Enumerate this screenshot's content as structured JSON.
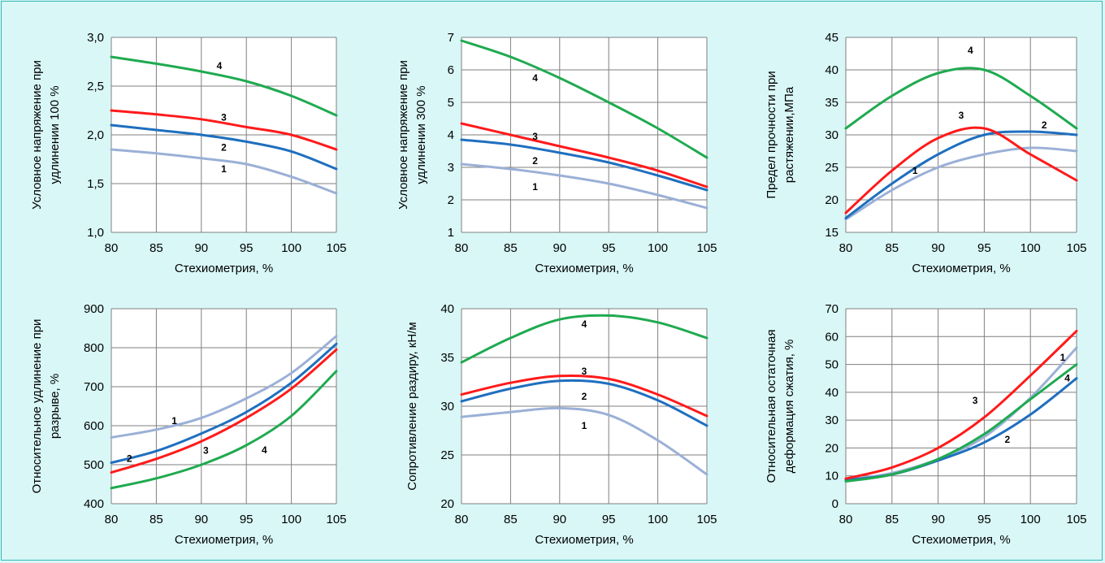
{
  "colors": {
    "background": "#d9f7f7",
    "frame": "#37b6b6",
    "plot_bg": "#ffffff",
    "grid": "#7f7f7f",
    "curve_1": "#9bb0d6",
    "curve_2": "#1f6fbf",
    "curve_3": "#ff1a1a",
    "curve_4": "#1faa50"
  },
  "chart_data": [
    {
      "type": "line",
      "xlabel": "Стехиометрия, %",
      "ylabel_lines": [
        "Условное напряжение при",
        "удлинении 100 %"
      ],
      "xlim": [
        80,
        105
      ],
      "ylim": [
        1.0,
        3.0
      ],
      "x_ticks": [
        80,
        85,
        90,
        95,
        100,
        105
      ],
      "y_ticks": [
        1.0,
        1.5,
        2.0,
        2.5,
        3.0
      ],
      "y_tick_labels": [
        "1,0",
        "1,5",
        "2,0",
        "2,5",
        "3,0"
      ],
      "x": [
        80,
        85,
        90,
        95,
        100,
        105
      ],
      "series": [
        {
          "label": "1",
          "label_at": [
            92.5,
            1.65
          ],
          "values": [
            1.85,
            1.81,
            1.76,
            1.7,
            1.57,
            1.4
          ]
        },
        {
          "label": "2",
          "label_at": [
            92.5,
            1.87
          ],
          "values": [
            2.1,
            2.05,
            2.0,
            1.93,
            1.83,
            1.65
          ]
        },
        {
          "label": "3",
          "label_at": [
            92.5,
            2.18
          ],
          "values": [
            2.25,
            2.21,
            2.16,
            2.08,
            2.0,
            1.85
          ]
        },
        {
          "label": "4",
          "label_at": [
            92.0,
            2.71
          ],
          "values": [
            2.8,
            2.73,
            2.65,
            2.55,
            2.4,
            2.2
          ]
        }
      ]
    },
    {
      "type": "line",
      "xlabel": "Стехиометрия, %",
      "ylabel_lines": [
        "Условное напряжение при",
        "удлинении 300 %"
      ],
      "xlim": [
        80,
        105
      ],
      "ylim": [
        1,
        7
      ],
      "x_ticks": [
        80,
        85,
        90,
        95,
        100,
        105
      ],
      "y_ticks": [
        1,
        2,
        3,
        4,
        5,
        6,
        7
      ],
      "y_tick_labels": [
        "1",
        "2",
        "3",
        "4",
        "5",
        "6",
        "7"
      ],
      "x": [
        80,
        85,
        90,
        95,
        100,
        105
      ],
      "series": [
        {
          "label": "1",
          "label_at": [
            87.5,
            2.4
          ],
          "values": [
            3.1,
            2.95,
            2.75,
            2.5,
            2.15,
            1.75
          ]
        },
        {
          "label": "2",
          "label_at": [
            87.5,
            3.2
          ],
          "values": [
            3.85,
            3.7,
            3.45,
            3.15,
            2.75,
            2.3
          ]
        },
        {
          "label": "3",
          "label_at": [
            87.5,
            3.95
          ],
          "values": [
            4.35,
            4.0,
            3.65,
            3.3,
            2.9,
            2.4
          ]
        },
        {
          "label": "4",
          "label_at": [
            87.5,
            5.75
          ],
          "values": [
            6.9,
            6.4,
            5.75,
            5.0,
            4.2,
            3.3
          ]
        }
      ]
    },
    {
      "type": "line",
      "xlabel": "Стехиометрия, %",
      "ylabel_lines": [
        "Предел прочности при",
        "растяжении,МПа"
      ],
      "xlim": [
        80,
        105
      ],
      "ylim": [
        15,
        45
      ],
      "x_ticks": [
        80,
        85,
        90,
        95,
        100,
        105
      ],
      "y_ticks": [
        15,
        20,
        25,
        30,
        35,
        40,
        45
      ],
      "y_tick_labels": [
        "15",
        "20",
        "25",
        "30",
        "35",
        "40",
        "45"
      ],
      "x": [
        80,
        85,
        90,
        95,
        100,
        105
      ],
      "series": [
        {
          "label": "1",
          "label_at": [
            87.5,
            24.5
          ],
          "values": [
            17.0,
            21.5,
            25.0,
            27.0,
            28.0,
            27.5
          ]
        },
        {
          "label": "2",
          "label_at": [
            101.5,
            31.5
          ],
          "values": [
            17.2,
            22.5,
            27.0,
            30.0,
            30.5,
            30.0
          ]
        },
        {
          "label": "3",
          "label_at": [
            92.5,
            33.0
          ],
          "values": [
            18.0,
            24.5,
            29.5,
            31.0,
            27.0,
            23.0
          ]
        },
        {
          "label": "4",
          "label_at": [
            93.5,
            43.0
          ],
          "values": [
            31.0,
            36.0,
            39.5,
            40.0,
            36.0,
            31.0
          ]
        }
      ]
    },
    {
      "type": "line",
      "xlabel": "Стехиометрия, %",
      "ylabel_lines": [
        "Относительное удлинение при",
        "разрыве, %"
      ],
      "xlim": [
        80,
        105
      ],
      "ylim": [
        400,
        900
      ],
      "x_ticks": [
        80,
        85,
        90,
        95,
        100,
        105
      ],
      "y_ticks": [
        400,
        500,
        600,
        700,
        800,
        900
      ],
      "y_tick_labels": [
        "400",
        "500",
        "600",
        "700",
        "800",
        "900"
      ],
      "x": [
        80,
        85,
        90,
        95,
        100,
        105
      ],
      "series": [
        {
          "label": "1",
          "label_at": [
            87.0,
            612
          ],
          "values": [
            570,
            590,
            620,
            670,
            735,
            830
          ]
        },
        {
          "label": "2",
          "label_at": [
            82.0,
            516
          ],
          "values": [
            505,
            535,
            580,
            635,
            710,
            810
          ]
        },
        {
          "label": "3",
          "label_at": [
            90.5,
            536
          ],
          "values": [
            480,
            515,
            560,
            620,
            695,
            795
          ]
        },
        {
          "label": "4",
          "label_at": [
            97.0,
            538
          ],
          "values": [
            440,
            465,
            500,
            550,
            625,
            740
          ]
        }
      ]
    },
    {
      "type": "line",
      "xlabel": "Стехиометрия, %",
      "ylabel_lines": [
        "Сопротивление раздиру, кН/м"
      ],
      "xlim": [
        80,
        105
      ],
      "ylim": [
        20,
        40
      ],
      "x_ticks": [
        80,
        85,
        90,
        95,
        100,
        105
      ],
      "y_ticks": [
        20,
        25,
        30,
        35,
        40
      ],
      "y_tick_labels": [
        "20",
        "25",
        "30",
        "35",
        "40"
      ],
      "x": [
        80,
        85,
        90,
        95,
        100,
        105
      ],
      "series": [
        {
          "label": "1",
          "label_at": [
            92.5,
            28.0
          ],
          "values": [
            28.9,
            29.4,
            29.8,
            29.1,
            26.5,
            23.0
          ]
        },
        {
          "label": "2",
          "label_at": [
            92.5,
            31.0
          ],
          "values": [
            30.5,
            31.8,
            32.6,
            32.3,
            30.6,
            28.0
          ]
        },
        {
          "label": "3",
          "label_at": [
            92.5,
            33.6
          ],
          "values": [
            31.2,
            32.4,
            33.1,
            32.8,
            31.2,
            29.0
          ]
        },
        {
          "label": "4",
          "label_at": [
            92.5,
            38.4
          ],
          "values": [
            34.5,
            37.0,
            38.9,
            39.3,
            38.6,
            37.0
          ]
        }
      ]
    },
    {
      "type": "line",
      "xlabel": "Стехиометрия, %",
      "ylabel_lines": [
        "Относительная остаточная",
        "деформация сжатия, %"
      ],
      "xlim": [
        80,
        105
      ],
      "ylim": [
        0,
        70
      ],
      "x_ticks": [
        80,
        85,
        90,
        95,
        100,
        105
      ],
      "y_ticks": [
        0,
        10,
        20,
        30,
        40,
        50,
        60,
        70
      ],
      "y_tick_labels": [
        "0",
        "10",
        "20",
        "30",
        "40",
        "50",
        "60",
        "70"
      ],
      "x": [
        80,
        85,
        90,
        95,
        100,
        105
      ],
      "series": [
        {
          "label": "1",
          "label_at": [
            103.5,
            52.5
          ],
          "values": [
            8.5,
            11.0,
            16.0,
            24.0,
            38.0,
            56.0
          ]
        },
        {
          "label": "2",
          "label_at": [
            97.5,
            23.0
          ],
          "values": [
            8.5,
            10.5,
            15.5,
            22.0,
            32.0,
            45.0
          ]
        },
        {
          "label": "3",
          "label_at": [
            94.0,
            37.0
          ],
          "values": [
            9.0,
            13.0,
            20.0,
            31.0,
            46.0,
            62.0
          ]
        },
        {
          "label": "4",
          "label_at": [
            104.0,
            45.0
          ],
          "values": [
            8.0,
            10.5,
            16.0,
            25.0,
            37.5,
            50.0
          ]
        }
      ]
    }
  ]
}
